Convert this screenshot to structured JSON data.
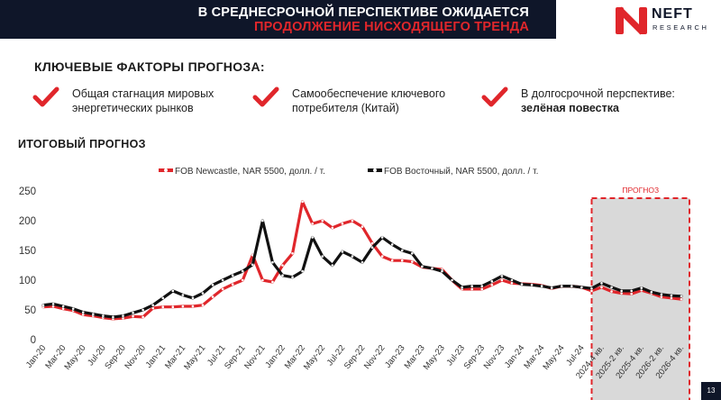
{
  "header": {
    "line1": "В СРЕДНЕСРОЧНОЙ ПЕРСПЕКТИВЕ ОЖИДАЕТСЯ",
    "line2": "ПРОДОЛЖЕНИЕ НИСХОДЯЩЕГО ТРЕНДА"
  },
  "logo": {
    "name": "NEFT",
    "sub": "RESEARCH"
  },
  "factors": {
    "title": "КЛЮЧЕВЫЕ ФАКТОРЫ ПРОГНОЗА:",
    "items": [
      {
        "line1": "Общая стагнация мировых",
        "line2": "энергетических рынков",
        "bold": ""
      },
      {
        "line1": "Самообеспечение ключевого",
        "line2": "потребителя (Китай)",
        "bold": ""
      },
      {
        "line1": "В долгосрочной перспективе:",
        "line2": "",
        "bold": "зелёная повестка"
      }
    ]
  },
  "colors": {
    "accent": "#e0262b",
    "dark": "#0f1629",
    "forecast_bg": "#d9d9d9"
  },
  "page_number": "13",
  "chart_data": {
    "type": "line",
    "title": "ИТОГОВЫЙ ПРОГНОЗ",
    "forecast_label": "ПРОГНОЗ",
    "forecast_start_index": 56,
    "ylim": [
      0,
      250
    ],
    "yticks": [
      0,
      50,
      100,
      150,
      200,
      250
    ],
    "grid": false,
    "legend_position": "top",
    "x": [
      "Jan-20",
      "Feb-20",
      "Mar-20",
      "Apr-20",
      "May-20",
      "Jun-20",
      "Jul-20",
      "Aug-20",
      "Sep-20",
      "Oct-20",
      "Nov-20",
      "Dec-20",
      "Jan-21",
      "Feb-21",
      "Mar-21",
      "Apr-21",
      "May-21",
      "Jun-21",
      "Jul-21",
      "Aug-21",
      "Sep-21",
      "Oct-21",
      "Nov-21",
      "Dec-21",
      "Jan-22",
      "Feb-22",
      "Mar-22",
      "Apr-22",
      "May-22",
      "Jun-22",
      "Jul-22",
      "Aug-22",
      "Sep-22",
      "Oct-22",
      "Nov-22",
      "Dec-22",
      "Jan-23",
      "Feb-23",
      "Mar-23",
      "Apr-23",
      "May-23",
      "Jun-23",
      "Jul-23",
      "Aug-23",
      "Sep-23",
      "Oct-23",
      "Nov-23",
      "Dec-23",
      "Jan-24",
      "Feb-24",
      "Mar-24",
      "Apr-24",
      "May-24",
      "Jun-24",
      "Jul-24",
      "Aug-24",
      "2024-4 кв.",
      "2025-1 кв.",
      "2025-2 кв.",
      "2025-3 кв.",
      "2025-4 кв.",
      "2026-1 кв.",
      "2026-2 кв.",
      "2026-3 кв.",
      "2026-4 кв."
    ],
    "xticks_shown": [
      "Jan-20",
      "Mar-20",
      "May-20",
      "Jul-20",
      "Sep-20",
      "Nov-20",
      "Jan-21",
      "Mar-21",
      "May-21",
      "Jul-21",
      "Sep-21",
      "Nov-21",
      "Jan-22",
      "Mar-22",
      "May-22",
      "Jul-22",
      "Sep-22",
      "Nov-22",
      "Jan-23",
      "Mar-23",
      "May-23",
      "Jul-23",
      "Sep-23",
      "Nov-23",
      "Jan-24",
      "Mar-24",
      "May-24",
      "Jul-24",
      "2024-4 кв.",
      "2025-2 кв.",
      "2025-4 кв.",
      "2026-2 кв.",
      "2026-4 кв."
    ],
    "series": [
      {
        "name": "FOB Newcastle, NAR 5500, долл. / т.",
        "color": "#e0262b",
        "values": [
          55,
          56,
          52,
          49,
          42,
          40,
          37,
          35,
          36,
          39,
          38,
          53,
          55,
          55,
          56,
          56,
          58,
          72,
          85,
          93,
          100,
          142,
          100,
          97,
          125,
          145,
          232,
          195,
          200,
          188,
          195,
          200,
          190,
          162,
          140,
          133,
          133,
          131,
          122,
          120,
          118,
          100,
          85,
          85,
          85,
          92,
          100,
          95,
          94,
          93,
          91,
          86,
          90,
          90,
          88,
          82,
          88,
          81,
          78,
          77,
          83,
          78,
          72,
          70,
          68
        ]
      },
      {
        "name": "FOB Восточный, NAR 5500, долл. / т.",
        "color": "#111111",
        "values": [
          58,
          60,
          56,
          52,
          46,
          43,
          40,
          38,
          40,
          45,
          50,
          58,
          70,
          82,
          75,
          70,
          78,
          92,
          100,
          108,
          115,
          126,
          200,
          130,
          108,
          105,
          115,
          172,
          140,
          125,
          148,
          140,
          130,
          155,
          172,
          160,
          150,
          145,
          123,
          120,
          115,
          100,
          88,
          90,
          90,
          98,
          107,
          100,
          93,
          92,
          90,
          87,
          90,
          90,
          88,
          86,
          95,
          88,
          82,
          82,
          87,
          80,
          76,
          74,
          73
        ]
      }
    ]
  }
}
